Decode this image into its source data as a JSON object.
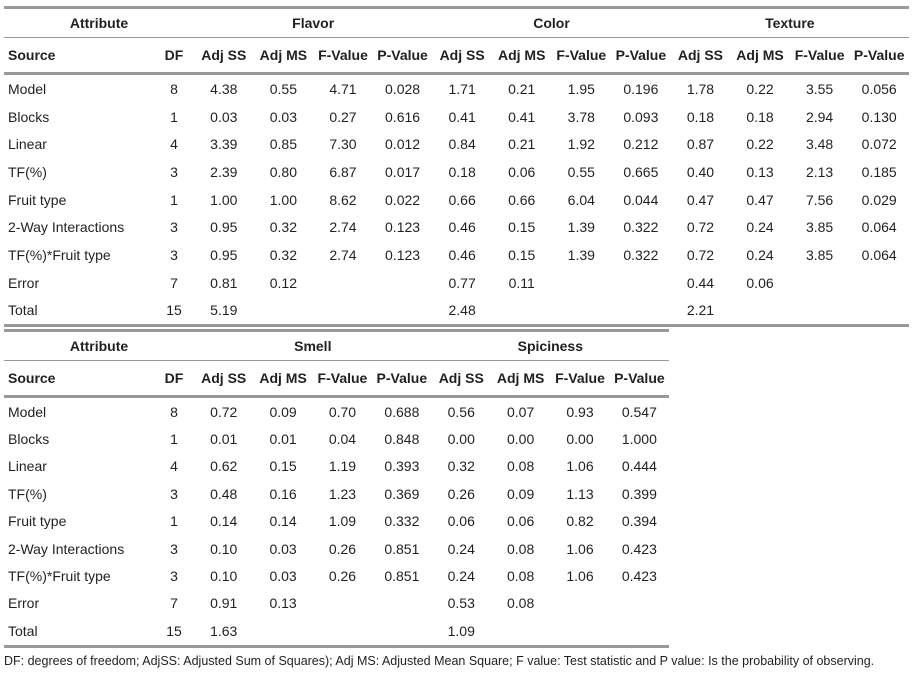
{
  "table1": {
    "header": {
      "attribute": "Attribute",
      "groups": [
        "Flavor",
        "Color",
        "Texture"
      ]
    },
    "columns": [
      "Source",
      "DF",
      "Adj SS",
      "Adj MS",
      "F-Value",
      "P-Value",
      "Adj SS",
      "Adj MS",
      "F-Value",
      "P-Value",
      "Adj SS",
      "Adj MS",
      "F-Value",
      "P-Value"
    ],
    "rows": [
      [
        "Model",
        "8",
        "4.38",
        "0.55",
        "4.71",
        "0.028",
        "1.71",
        "0.21",
        "1.95",
        "0.196",
        "1.78",
        "0.22",
        "3.55",
        "0.056"
      ],
      [
        "Blocks",
        "1",
        "0.03",
        "0.03",
        "0.27",
        "0.616",
        "0.41",
        "0.41",
        "3.78",
        "0.093",
        "0.18",
        "0.18",
        "2.94",
        "0.130"
      ],
      [
        "Linear",
        "4",
        "3.39",
        "0.85",
        "7.30",
        "0.012",
        "0.84",
        "0.21",
        "1.92",
        "0.212",
        "0.87",
        "0.22",
        "3.48",
        "0.072"
      ],
      [
        "TF(%)",
        "3",
        "2.39",
        "0.80",
        "6.87",
        "0.017",
        "0.18",
        "0.06",
        "0.55",
        "0.665",
        "0.40",
        "0.13",
        "2.13",
        "0.185"
      ],
      [
        "Fruit type",
        "1",
        "1.00",
        "1.00",
        "8.62",
        "0.022",
        "0.66",
        "0.66",
        "6.04",
        "0.044",
        "0.47",
        "0.47",
        "7.56",
        "0.029"
      ],
      [
        "2-Way Interactions",
        "3",
        "0.95",
        "0.32",
        "2.74",
        "0.123",
        "0.46",
        "0.15",
        "1.39",
        "0.322",
        "0.72",
        "0.24",
        "3.85",
        "0.064"
      ],
      [
        "TF(%)*Fruit type",
        "3",
        "0.95",
        "0.32",
        "2.74",
        "0.123",
        "0.46",
        "0.15",
        "1.39",
        "0.322",
        "0.72",
        "0.24",
        "3.85",
        "0.064"
      ],
      [
        "Error",
        "7",
        "0.81",
        "0.12",
        null,
        null,
        "0.77",
        "0.11",
        null,
        null,
        "0.44",
        "0.06",
        null,
        null
      ],
      [
        "Total",
        "15",
        "5.19",
        null,
        null,
        null,
        "2.48",
        null,
        null,
        null,
        "2.21",
        null,
        null,
        null
      ]
    ]
  },
  "table2": {
    "header": {
      "attribute": "Attribute",
      "groups": [
        "Smell",
        "Spiciness"
      ]
    },
    "columns": [
      "Source",
      "DF",
      "Adj SS",
      "Adj MS",
      "F-Value",
      "P-Value",
      "Adj SS",
      "Adj MS",
      "F-Value",
      "P-Value"
    ],
    "rows": [
      [
        "Model",
        "8",
        "0.72",
        "0.09",
        "0.70",
        "0.688",
        "0.56",
        "0.07",
        "0.93",
        "0.547"
      ],
      [
        "Blocks",
        "1",
        "0.01",
        "0.01",
        "0.04",
        "0.848",
        "0.00",
        "0.00",
        "0.00",
        "1.000"
      ],
      [
        "Linear",
        "4",
        "0.62",
        "0.15",
        "1.19",
        "0.393",
        "0.32",
        "0.08",
        "1.06",
        "0.444"
      ],
      [
        "TF(%)",
        "3",
        "0.48",
        "0.16",
        "1.23",
        "0.369",
        "0.26",
        "0.09",
        "1.13",
        "0.399"
      ],
      [
        "Fruit type",
        "1",
        "0.14",
        "0.14",
        "1.09",
        "0.332",
        "0.06",
        "0.06",
        "0.82",
        "0.394"
      ],
      [
        "2-Way Interactions",
        "3",
        "0.10",
        "0.03",
        "0.26",
        "0.851",
        "0.24",
        "0.08",
        "1.06",
        "0.423"
      ],
      [
        "TF(%)*Fruit type",
        "3",
        "0.10",
        "0.03",
        "0.26",
        "0.851",
        "0.24",
        "0.08",
        "1.06",
        "0.423"
      ],
      [
        "Error",
        "7",
        "0.91",
        "0.13",
        null,
        null,
        "0.53",
        "0.08",
        null,
        null
      ],
      [
        "Total",
        "15",
        "1.63",
        null,
        null,
        null,
        "1.09",
        null,
        null,
        null
      ]
    ]
  },
  "footnote": "DF: degrees of freedom; AdjSS: Adjusted Sum of Squares); Adj MS: Adjusted Mean Square; F value: Test statistic and P value: Is the probability of observing."
}
